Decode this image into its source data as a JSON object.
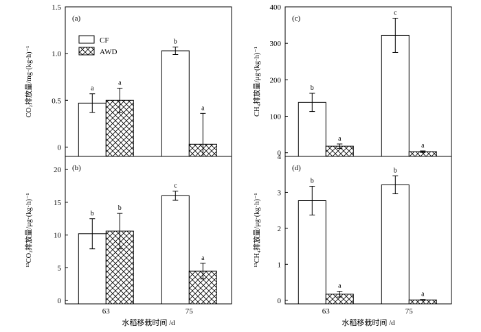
{
  "chart_data": [
    {
      "panel": "(a)",
      "type": "bar",
      "ylabel": "CO₂排放量/mg·(kg·h)⁻¹",
      "ylim": [
        -0.1,
        1.5
      ],
      "yticks": [
        "0",
        "0.5",
        "1.0",
        "1.5"
      ],
      "ytick_values": [
        0,
        0.5,
        1.0,
        1.5
      ],
      "categories": [
        "63",
        "75"
      ],
      "series": [
        {
          "name": "CF",
          "values": [
            0.47,
            1.03
          ],
          "errors": [
            0.1,
            0.04
          ],
          "letters": [
            "a",
            "b"
          ]
        },
        {
          "name": "AWD",
          "values": [
            0.5,
            0.03
          ],
          "errors": [
            0.13,
            0.33
          ],
          "letters": [
            "a",
            "a"
          ]
        }
      ],
      "legend": "top-left"
    },
    {
      "panel": "(c)",
      "type": "bar",
      "ylabel": "CH₄排放量/μg·(kg·h)⁻¹",
      "ylim": [
        -10,
        400
      ],
      "yticks": [
        "0",
        "100",
        "200",
        "300",
        "400"
      ],
      "ytick_values": [
        0,
        100,
        200,
        300,
        400
      ],
      "categories": [
        "63",
        "75"
      ],
      "series": [
        {
          "name": "CF",
          "values": [
            138,
            322
          ],
          "errors": [
            25,
            47
          ],
          "letters": [
            "b",
            "c"
          ]
        },
        {
          "name": "AWD",
          "values": [
            18,
            3
          ],
          "errors": [
            6,
            2
          ],
          "letters": [
            "a",
            "a"
          ]
        }
      ]
    },
    {
      "panel": "(b)",
      "type": "bar",
      "ylabel": "¹³CO₂排放量/μg·(kg·h)⁻¹",
      "ylim": [
        -0.5,
        22
      ],
      "yticks": [
        "0",
        "5",
        "10",
        "15",
        "20"
      ],
      "ytick_values": [
        0,
        5,
        10,
        15,
        20
      ],
      "categories": [
        "63",
        "75"
      ],
      "series": [
        {
          "name": "CF",
          "values": [
            10.2,
            16.0
          ],
          "errors": [
            2.3,
            0.7
          ],
          "letters": [
            "b",
            "c"
          ]
        },
        {
          "name": "AWD",
          "values": [
            10.6,
            4.5
          ],
          "errors": [
            2.7,
            1.2
          ],
          "letters": [
            "b",
            "a"
          ]
        }
      ],
      "xlabel": "水稻移栽时间 /d"
    },
    {
      "panel": "(d)",
      "type": "bar",
      "ylabel": "¹³CH₄排放量/μg·(kg·h)⁻¹",
      "ylim": [
        -0.1,
        4
      ],
      "yticks": [
        "0",
        "1",
        "2",
        "3",
        "4"
      ],
      "ytick_values": [
        0,
        1,
        2,
        3,
        4
      ],
      "categories": [
        "63",
        "75"
      ],
      "series": [
        {
          "name": "CF",
          "values": [
            2.77,
            3.21
          ],
          "errors": [
            0.4,
            0.25
          ],
          "letters": [
            "b",
            "b"
          ]
        },
        {
          "name": "AWD",
          "values": [
            0.17,
            0.01
          ],
          "errors": [
            0.08,
            0.01
          ],
          "letters": [
            "a",
            "a"
          ]
        }
      ],
      "xlabel": "水稻移栽时间 /d"
    }
  ],
  "legend": {
    "cf_label": "CF",
    "awd_label": "AWD"
  }
}
